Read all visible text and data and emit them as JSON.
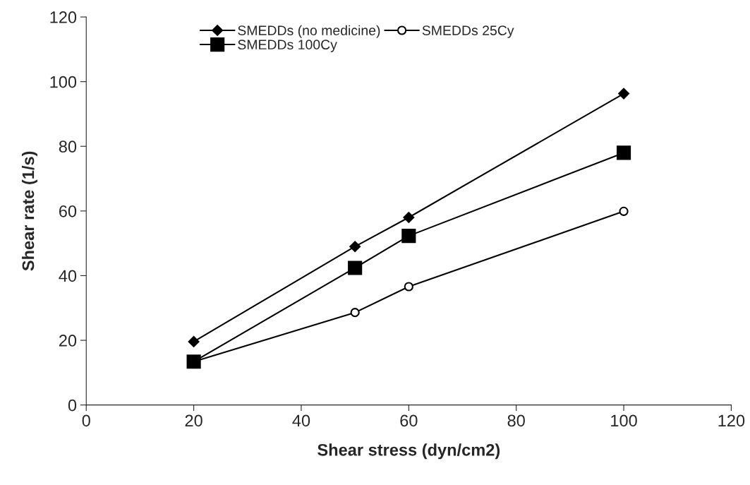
{
  "chart_data": {
    "type": "line",
    "xlabel": "Shear stress (dyn/cm2)",
    "ylabel": "Shear rate (1/s)",
    "x": [
      20,
      50,
      60,
      100
    ],
    "series": [
      {
        "name": "SMEDDs (no medicine)",
        "color": "#000000",
        "marker": "diamond",
        "values": [
          19.6,
          49.0,
          58.0,
          96.3
        ]
      },
      {
        "name": "SMEDDs 100Cy",
        "color": "#000000",
        "marker": "square",
        "values": [
          13.4,
          42.4,
          52.3,
          78.0
        ]
      },
      {
        "name": "SMEDDs 25Cy",
        "color": "#000000",
        "marker": "circle",
        "values": [
          13.4,
          28.6,
          36.6,
          59.9
        ]
      }
    ],
    "xlim": [
      0,
      120
    ],
    "xticks": [
      0,
      20,
      40,
      60,
      80,
      100,
      120
    ],
    "ylim": [
      0,
      120
    ],
    "yticks": [
      0,
      20,
      40,
      60,
      80,
      100,
      120
    ],
    "grid": false,
    "legend": "top",
    "line_style": "solid"
  }
}
